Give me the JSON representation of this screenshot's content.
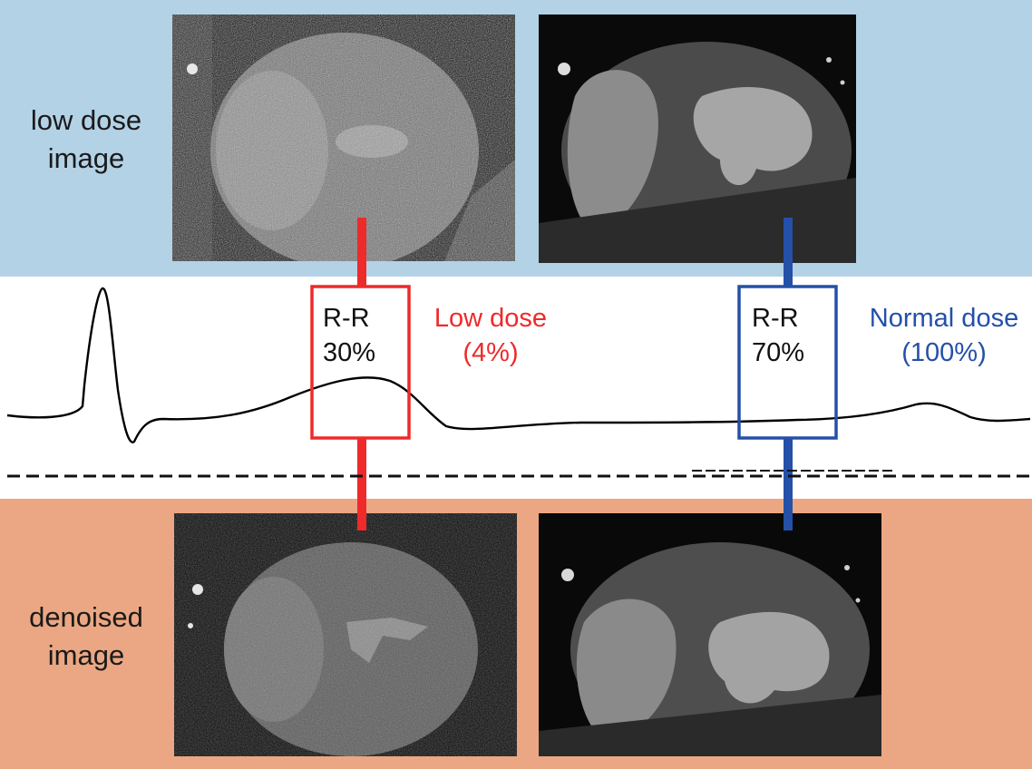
{
  "colors": {
    "top_band": "#b3d2e6",
    "bottom_band": "#eba783",
    "low_dose_accent": "#ee2a2a",
    "normal_dose_accent": "#2450a8",
    "trace": "#000000"
  },
  "top_row": {
    "label_line1": "low dose",
    "label_line2": "image"
  },
  "bottom_row": {
    "label_line1": "denoised",
    "label_line2": "image"
  },
  "ecg": {
    "low_window": {
      "rr_label": "R-R",
      "rr_value": "30%",
      "dose_label": "Low dose",
      "dose_value": "(4%)"
    },
    "normal_window": {
      "rr_label": "R-R",
      "rr_value": "70%",
      "dose_label": "Normal dose",
      "dose_value": "(100%)"
    }
  },
  "scans": {
    "low_dose_30": "noisy cardiac CT slice",
    "normal_dose_70": "clean cardiac CT slice",
    "denoised_30": "denoised cardiac CT slice",
    "denoised_70": "denoised cardiac CT slice"
  }
}
